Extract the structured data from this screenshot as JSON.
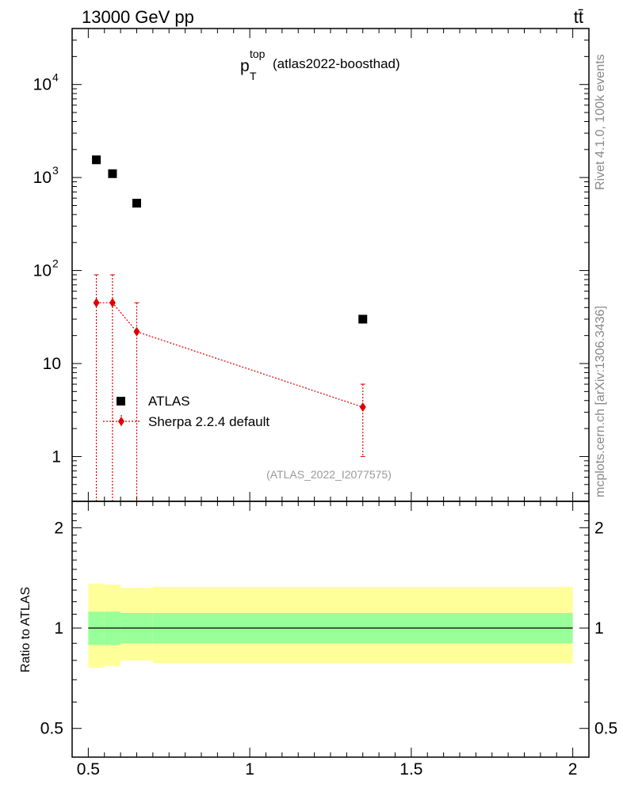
{
  "header": {
    "energy": "13000 GeV pp",
    "process": "tt̄"
  },
  "side_labels": {
    "rivet": "Rivet 4.1.0,  100k events",
    "mcplots": "mcplots.cern.ch [arXiv:1306.3436]"
  },
  "plot_title": {
    "main": "p",
    "sub": "T",
    "sup": "top",
    "tag": "(atlas2022-boosthad)"
  },
  "analysis_id": "(ATLAS_2022_I2077575)",
  "colors": {
    "data": "#000000",
    "mc": "#e00000",
    "band_inner": "#99ff99",
    "band_outer": "#ffff99"
  },
  "chart_data": [
    {
      "type": "scatter",
      "name": "main",
      "yscale": "log",
      "xlim": [
        0.45,
        2.05
      ],
      "ylim": [
        0.33,
        40000
      ],
      "yticks": [
        {
          "value": 10000,
          "label": "10",
          "exp": "4"
        },
        {
          "value": 1000,
          "label": "10",
          "exp": "3"
        },
        {
          "value": 100,
          "label": "10",
          "exp": "2"
        },
        {
          "value": 10,
          "label": "10",
          "exp": ""
        },
        {
          "value": 1,
          "label": "1",
          "exp": ""
        }
      ],
      "legend": {
        "position": "center-left",
        "entries": [
          "ATLAS",
          "Sherpa 2.2.4 default"
        ]
      },
      "series": [
        {
          "name": "ATLAS",
          "marker": "square",
          "points": [
            {
              "x": 0.525,
              "y": 1550
            },
            {
              "x": 0.575,
              "y": 1100
            },
            {
              "x": 0.65,
              "y": 530
            },
            {
              "x": 1.35,
              "y": 30
            }
          ]
        },
        {
          "name": "Sherpa 2.2.4 default",
          "marker": "diamond",
          "line": "dotted",
          "points": [
            {
              "x": 0.525,
              "y": 45,
              "ylo": 0.0,
              "yhi": 90
            },
            {
              "x": 0.575,
              "y": 45,
              "ylo": 0.0,
              "yhi": 90
            },
            {
              "x": 0.65,
              "y": 22,
              "ylo": 0.0,
              "yhi": 45
            },
            {
              "x": 1.35,
              "y": 3.4,
              "ylo": 1.0,
              "yhi": 6.0
            }
          ]
        }
      ]
    },
    {
      "type": "area",
      "name": "ratio",
      "ylabel": "Ratio to ATLAS",
      "yscale": "log",
      "xlim": [
        0.45,
        2.05
      ],
      "ylim": [
        0.41,
        2.4
      ],
      "yticks": [
        {
          "value": 2,
          "label": "2"
        },
        {
          "value": 1,
          "label": "1"
        },
        {
          "value": 0.5,
          "label": "0.5"
        }
      ],
      "xticks": [
        {
          "value": 0.5,
          "label": "0.5"
        },
        {
          "value": 1,
          "label": "1"
        },
        {
          "value": 1.5,
          "label": "1.5"
        },
        {
          "value": 2,
          "label": "2"
        }
      ],
      "reference_line": 1,
      "bands": [
        {
          "x0": 0.5,
          "x1": 0.55,
          "inner": [
            0.89,
            1.12
          ],
          "outer": [
            0.76,
            1.36
          ]
        },
        {
          "x0": 0.55,
          "x1": 0.6,
          "inner": [
            0.89,
            1.12
          ],
          "outer": [
            0.77,
            1.35
          ]
        },
        {
          "x0": 0.6,
          "x1": 0.7,
          "inner": [
            0.9,
            1.11
          ],
          "outer": [
            0.8,
            1.32
          ]
        },
        {
          "x0": 0.7,
          "x1": 2.0,
          "inner": [
            0.9,
            1.11
          ],
          "outer": [
            0.785,
            1.33
          ]
        }
      ]
    }
  ]
}
